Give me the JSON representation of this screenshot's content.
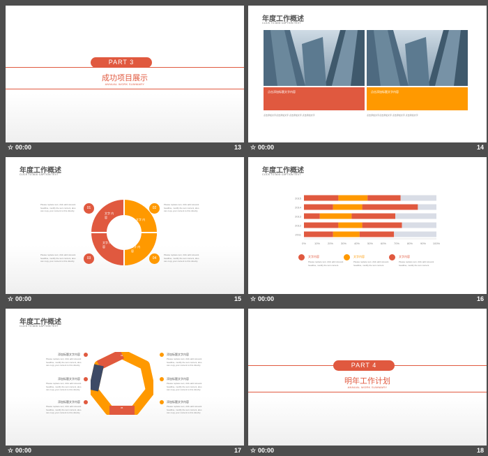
{
  "footer": {
    "icon": "☆",
    "time": "00:00"
  },
  "slides": [
    {
      "num": "13",
      "part": "PART  3",
      "title": "成功项目展示",
      "subtitle": "ANNUAL WORK SUMMARY"
    },
    {
      "num": "14",
      "title": "年度工作概述",
      "subtitle": "CLICK TO ADD CAPTION TEXT",
      "box1": "点击添加标题文字内容",
      "box2": "点击添加标题文字内容",
      "caption1": "点击添加文字点击添加文字 点击添加文字 点击添加文字",
      "caption2": "点击添加文字点击添加文字 点击添加文字 点击添加文字"
    },
    {
      "num": "15",
      "title": "年度工作概述",
      "subtitle": "CLICK TO ADD CAPTION TEXT",
      "steps": [
        "01",
        "02",
        "03",
        "04"
      ],
      "segment": "文字 内容",
      "body": "Please replace text, click add relevant headline, modify the text content, also can copy your content to this directly."
    },
    {
      "num": "16",
      "title": "年度工作概述",
      "subtitle": "CLICK TO ADD CAPTION TEXT",
      "legend": "文字内容",
      "body": "Please replace text, click add relevant headline, modify the text content."
    },
    {
      "num": "17",
      "title": "年度工作概述",
      "subtitle": "CLICK TO ADD CAPTION TEXT",
      "steps": [
        "01",
        "02",
        "03",
        "04",
        "05",
        "06",
        "07"
      ],
      "item": "添加标题文字内容",
      "body": "Please replace text, click add relevant headline, modify the text content, also can copy your content to this directly."
    },
    {
      "num": "18",
      "part": "PART  4",
      "title": "明年工作计划",
      "subtitle": "ANNUAL WORK SUMMARY"
    }
  ],
  "chart_data": {
    "type": "bar",
    "stacked": true,
    "orientation": "horizontal",
    "categories": [
      "2011",
      "2012",
      "2013",
      "2014",
      "2015"
    ],
    "series": [
      {
        "values": [
          22,
          26,
          12,
          22,
          26
        ]
      },
      {
        "values": [
          20,
          18,
          24,
          22,
          22
        ]
      },
      {
        "values": [
          26,
          30,
          33,
          42,
          25
        ]
      },
      {
        "values": [
          32,
          26,
          31,
          14,
          27
        ]
      }
    ],
    "xticks": [
      "0%",
      "10%",
      "20%",
      "30%",
      "40%",
      "50%",
      "60%",
      "70%",
      "80%",
      "90%",
      "100%"
    ],
    "xlim": [
      0,
      100
    ],
    "colors": [
      "#e0593f",
      "#ff9900",
      "#e0593f",
      "#d9dde6"
    ]
  }
}
